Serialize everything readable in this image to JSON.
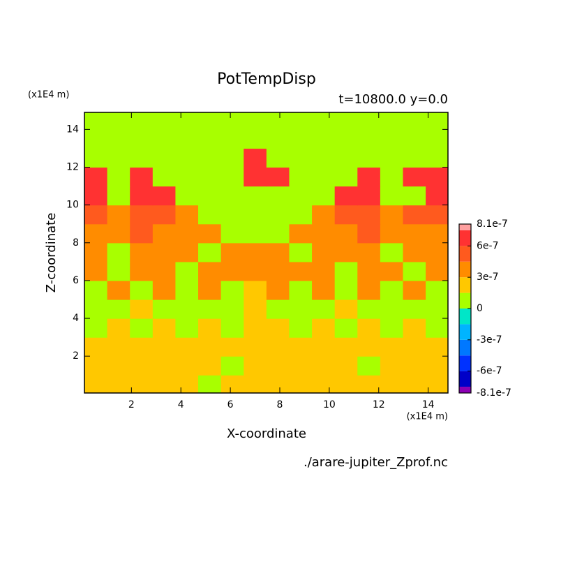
{
  "chart_data": {
    "type": "contour",
    "title": "PotTempDisp",
    "subtitle": "t=10800.0 y=0.0",
    "x_label": "X-coordinate",
    "y_label": "Z-coordinate",
    "x_unit": "(x1E4 m)",
    "y_unit": "(x1E4 m)",
    "file": "./arare-jupiter_Zprof.nc",
    "xlim": [
      0.1,
      14.8
    ],
    "ylim": [
      0.05,
      14.9
    ],
    "xticks": [
      2,
      4,
      6,
      8,
      10,
      12,
      14
    ],
    "yticks": [
      2,
      4,
      6,
      8,
      10,
      12,
      14
    ],
    "x": [
      0.56,
      1.48,
      2.4,
      3.32,
      4.24,
      5.16,
      6.08,
      7.0,
      7.92,
      8.84,
      9.76,
      10.68,
      11.6,
      12.52,
      13.44,
      14.36
    ],
    "y": [
      0.5,
      1.5,
      2.5,
      3.5,
      4.5,
      5.5,
      6.5,
      7.5,
      8.5,
      9.5,
      10.5,
      11.5,
      12.5,
      13.5,
      14.5
    ],
    "z": [
      [
        2e-07,
        2e-07,
        2e-07,
        2e-07,
        2e-07,
        1e-07,
        2e-07,
        2e-07,
        2e-07,
        2e-07,
        2e-07,
        2e-07,
        2e-07,
        2e-07,
        2e-07,
        2e-07
      ],
      [
        2e-07,
        2e-07,
        2e-07,
        2e-07,
        2e-07,
        2e-07,
        1e-07,
        2e-07,
        2e-07,
        2e-07,
        2e-07,
        2e-07,
        1e-07,
        2e-07,
        2e-07,
        2e-07
      ],
      [
        2e-07,
        2e-07,
        2e-07,
        2e-07,
        2e-07,
        2e-07,
        2e-07,
        2e-07,
        2e-07,
        2e-07,
        2e-07,
        2e-07,
        2e-07,
        2e-07,
        2e-07,
        2e-07
      ],
      [
        1e-07,
        2e-07,
        1e-07,
        2e-07,
        1e-07,
        2e-07,
        1e-07,
        2e-07,
        2e-07,
        1e-07,
        2e-07,
        1e-07,
        2e-07,
        1e-07,
        2e-07,
        1e-07
      ],
      [
        1e-07,
        1e-07,
        2e-07,
        1e-07,
        1e-07,
        1e-07,
        1e-07,
        2e-07,
        1e-07,
        1e-07,
        1e-07,
        2e-07,
        1e-07,
        1e-07,
        1e-07,
        1e-07
      ],
      [
        1e-07,
        4e-07,
        1e-07,
        4e-07,
        1e-07,
        4e-07,
        1e-07,
        2e-07,
        4e-07,
        1e-07,
        4e-07,
        1e-07,
        4e-07,
        1e-07,
        4e-07,
        1e-07
      ],
      [
        4e-07,
        1e-07,
        4e-07,
        4e-07,
        1e-07,
        4e-07,
        4e-07,
        4e-07,
        4e-07,
        4e-07,
        4e-07,
        1e-07,
        4e-07,
        4e-07,
        1e-07,
        4e-07
      ],
      [
        4e-07,
        1e-07,
        4e-07,
        4e-07,
        4e-07,
        1e-07,
        4e-07,
        4e-07,
        4e-07,
        1e-07,
        4e-07,
        4e-07,
        4e-07,
        1e-07,
        4e-07,
        4e-07
      ],
      [
        4e-07,
        4e-07,
        5e-07,
        4e-07,
        4e-07,
        4e-07,
        1e-07,
        1e-07,
        1e-07,
        4e-07,
        4e-07,
        4e-07,
        5e-07,
        4e-07,
        4e-07,
        4e-07
      ],
      [
        5e-07,
        4e-07,
        5e-07,
        5e-07,
        4e-07,
        1e-07,
        1e-07,
        1e-07,
        1e-07,
        1e-07,
        4e-07,
        5e-07,
        5e-07,
        4e-07,
        5e-07,
        5e-07
      ],
      [
        7e-07,
        1e-07,
        7e-07,
        7e-07,
        1e-07,
        1e-07,
        1e-07,
        1e-07,
        1e-07,
        1e-07,
        1e-07,
        7e-07,
        7e-07,
        1e-07,
        1e-07,
        7e-07
      ],
      [
        7e-07,
        1e-07,
        7e-07,
        1e-07,
        1e-07,
        1e-07,
        1e-07,
        7e-07,
        7e-07,
        1e-07,
        1e-07,
        1e-07,
        7e-07,
        1e-07,
        7e-07,
        7e-07
      ],
      [
        1e-07,
        1e-07,
        1e-07,
        1e-07,
        1e-07,
        1e-07,
        1e-07,
        7e-07,
        1e-07,
        1e-07,
        1e-07,
        1e-07,
        1e-07,
        1e-07,
        1e-07,
        1e-07
      ],
      [
        1e-07,
        1e-07,
        1e-07,
        1e-07,
        1e-07,
        1e-07,
        1e-07,
        1e-07,
        1e-07,
        1e-07,
        1e-07,
        1e-07,
        1e-07,
        1e-07,
        1e-07,
        1e-07
      ],
      [
        1e-07,
        1e-07,
        1e-07,
        1e-07,
        1e-07,
        1e-07,
        1e-07,
        1e-07,
        1e-07,
        1e-07,
        1e-07,
        1e-07,
        1e-07,
        1e-07,
        1e-07,
        1e-07
      ]
    ],
    "levels": [
      -8.1e-07,
      -7.5e-07,
      -6e-07,
      -4.5e-07,
      -3e-07,
      -1.5e-07,
      0,
      1.5e-07,
      3e-07,
      4.5e-07,
      6e-07,
      7.5e-07,
      8.1e-07
    ],
    "colors": [
      "#8c00b4",
      "#0000c8",
      "#0032ff",
      "#0078ff",
      "#00b4ff",
      "#00e6c8",
      "#a8ff00",
      "#ffc800",
      "#ff8c00",
      "#ff5a1e",
      "#ff3232",
      "#ffa0a0"
    ],
    "colorbar_ticks": [
      8.1e-07,
      6e-07,
      3e-07,
      0,
      -3e-07,
      -6e-07,
      -8.1e-07
    ]
  }
}
